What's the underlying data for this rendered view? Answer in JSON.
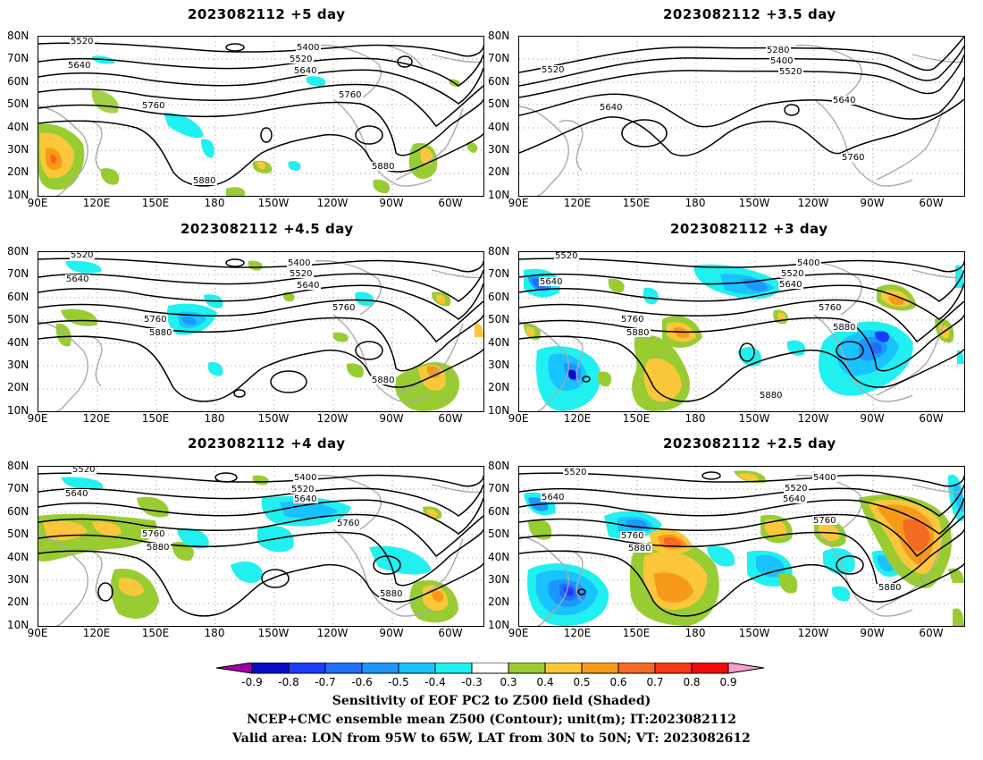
{
  "panels": [
    {
      "title": "2023082112 +5 day",
      "contours": [
        "5520",
        "5640",
        "5400",
        "5520",
        "5640",
        "5760",
        "5760",
        "5880",
        "5880"
      ]
    },
    {
      "title": "2023082112 +3.5 day",
      "contours": [
        "5280",
        "5400",
        "5520",
        "5520",
        "5640",
        "5640",
        "5760"
      ]
    },
    {
      "title": "2023082112 +4.5 day",
      "contours": [
        "5520",
        "5640",
        "5400",
        "5520",
        "5640",
        "5760",
        "5760",
        "5880",
        "5880"
      ]
    },
    {
      "title": "2023082112 +3 day",
      "contours": [
        "5520",
        "5640",
        "5400",
        "5520",
        "5640",
        "5760",
        "5760",
        "5880",
        "5880",
        "5880"
      ]
    },
    {
      "title": "2023082112 +4 day",
      "contours": [
        "5520",
        "5640",
        "5400",
        "5520",
        "5640",
        "5760",
        "5760",
        "5880",
        "5880"
      ]
    },
    {
      "title": "2023082112 +2.5 day",
      "contours": [
        "5520",
        "5640",
        "5400",
        "5520",
        "5640",
        "5760",
        "5760",
        "5880",
        "5880"
      ]
    }
  ],
  "axes": {
    "lat_labels": [
      "80N",
      "70N",
      "60N",
      "50N",
      "40N",
      "30N",
      "20N",
      "10N"
    ],
    "lon_labels": [
      "90E",
      "120E",
      "150E",
      "180",
      "150W",
      "120W",
      "90W",
      "60W"
    ]
  },
  "colorbar": {
    "labels": [
      "-0.9",
      "-0.8",
      "-0.7",
      "-0.6",
      "-0.5",
      "-0.4",
      "-0.3",
      "0.3",
      "0.4",
      "0.5",
      "0.6",
      "0.7",
      "0.8",
      "0.9"
    ],
    "colors": [
      "#a0009f",
      "#0a0ac8",
      "#1e3cff",
      "#1f6fff",
      "#1e96ff",
      "#19c3ff",
      "#20f0f0",
      "#ffffff",
      "#99cc33",
      "#fac73a",
      "#f79a1a",
      "#f56a22",
      "#f53a16",
      "#f00a0a",
      "#f6a0d0"
    ]
  },
  "captions": [
    "Sensitivity of EOF PC2 to Z500 field (Shaded)",
    "NCEP+CMC ensemble mean Z500 (Contour); unit(m); IT:2023082112",
    "Valid area: LON from 95W to 65W, LAT from 30N to 50N; VT: 2023082612"
  ]
}
